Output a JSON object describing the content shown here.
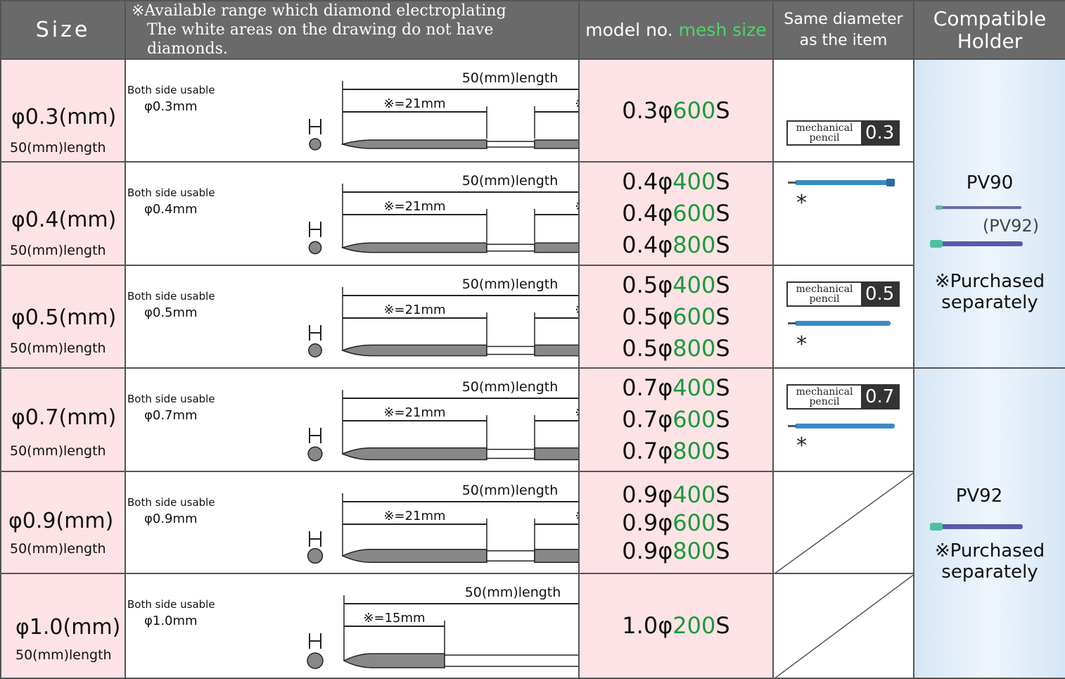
{
  "header": {
    "size": "Size",
    "range_line1": "※Available range which diamond electroplating",
    "range_line2": "The white areas on the drawing do not have diamonds.",
    "model_label": "model no.",
    "mesh_label": "mesh size",
    "same_line1": "Same diameter",
    "same_line2": "as the item",
    "holder_line1": "Compatible",
    "holder_line2": "Holder"
  },
  "common": {
    "both_side": "Both side usable",
    "length": "50(mm)length",
    "coating21": "※=21mm",
    "coating15": "※=15mm"
  },
  "rows": [
    {
      "size": "φ0.3(mm)",
      "sub": "50(mm)length",
      "dia": "φ0.3mm",
      "models": [
        {
          "p": "0.3φ",
          "m": "600",
          "s": "S"
        }
      ]
    },
    {
      "size": "φ0.4(mm)",
      "sub": "50(mm)length",
      "dia": "φ0.4mm",
      "models": [
        {
          "p": "0.4φ",
          "m": "400",
          "s": "S"
        },
        {
          "p": "0.4φ",
          "m": "600",
          "s": "S"
        },
        {
          "p": "0.4φ",
          "m": "800",
          "s": "S"
        }
      ]
    },
    {
      "size": "φ0.5(mm)",
      "sub": "50(mm)length",
      "dia": "φ0.5mm",
      "models": [
        {
          "p": "0.5φ",
          "m": "400",
          "s": "S"
        },
        {
          "p": "0.5φ",
          "m": "600",
          "s": "S"
        },
        {
          "p": "0.5φ",
          "m": "800",
          "s": "S"
        }
      ]
    },
    {
      "size": "φ0.7(mm)",
      "sub": "50(mm)length",
      "dia": "φ0.7mm",
      "models": [
        {
          "p": "0.7φ",
          "m": "400",
          "s": "S"
        },
        {
          "p": "0.7φ",
          "m": "600",
          "s": "S"
        },
        {
          "p": "0.7φ",
          "m": "800",
          "s": "S"
        }
      ]
    },
    {
      "size": "φ0.9(mm)",
      "sub": "50(mm)length",
      "dia": "φ0.9mm",
      "models": [
        {
          "p": "0.9φ",
          "m": "400",
          "s": "S"
        },
        {
          "p": "0.9φ",
          "m": "600",
          "s": "S"
        },
        {
          "p": "0.9φ",
          "m": "800",
          "s": "S"
        }
      ]
    },
    {
      "size": "φ1.0(mm)",
      "sub": "50(mm)length",
      "dia": "φ1.0mm",
      "models": [
        {
          "p": "1.0φ",
          "m": "200",
          "s": "S"
        }
      ]
    }
  ],
  "pencil": {
    "label_line1": "mechanical",
    "label_line2": "pencil",
    "badge_03": "0.3",
    "badge_05": "0.5",
    "badge_07": "0.7",
    "star": "*"
  },
  "holders": {
    "top_name": "PV90",
    "top_alt": "(PV92)",
    "bottom_name": "PV92",
    "purchased_line1": "※Purchased",
    "purchased_line2": "separately"
  },
  "colors": {
    "pink": "#fde3e6",
    "green": "#1a9a3a",
    "header": "#6a6a6a",
    "holder": "#dbe9f7"
  }
}
